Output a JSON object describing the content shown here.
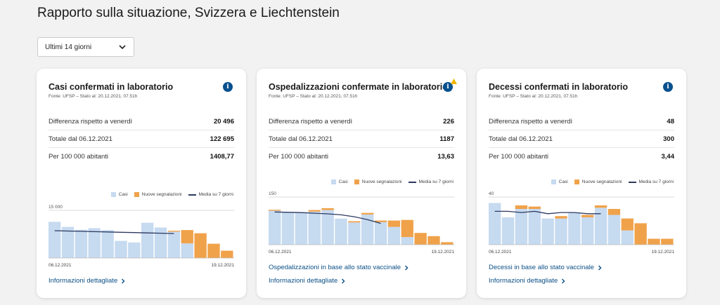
{
  "page": {
    "title": "Rapporto sulla situazione, Svizzera e Liechtenstein"
  },
  "period_select": {
    "value": "Ultimi 14 giorni"
  },
  "colors": {
    "bar": "#c6daf0",
    "new": "#f0a24a",
    "avg": "#2d3960",
    "accent": "#06508e"
  },
  "legend": {
    "cases": "Casi",
    "new": "Nuove segnalazioni",
    "avg": "Media su 7 giorni"
  },
  "cards": [
    {
      "title": "Casi confermati in laboratorio",
      "source": "Fonte: UFSP – Stato al: 20.12.2021, 07.51h",
      "stats": [
        {
          "label": "Differenza rispetto a venerdì",
          "value": "20 496"
        },
        {
          "label": "Totale dal 06.12.2021",
          "value": "122 695"
        },
        {
          "label": "Per 100 000 abitanti",
          "value": "1408,77"
        }
      ],
      "links": [
        "Informazioni dettagliate"
      ]
    },
    {
      "title": "Ospedalizzazioni confermate in laboratorio",
      "source": "Fonte: UFSP – Stato al: 20.12.2021, 07.51h",
      "stats": [
        {
          "label": "Differenza rispetto a venerdì",
          "value": "226"
        },
        {
          "label": "Totale dal 06.12.2021",
          "value": "1187"
        },
        {
          "label": "Per 100 000 abitanti",
          "value": "13,63"
        }
      ],
      "links": [
        "Ospedalizzazioni in base allo stato vaccinale",
        "Informazioni dettagliate"
      ]
    },
    {
      "title": "Decessi confermati in laboratorio",
      "source": "Fonte: UFSP – Stato al: 20.12.2021, 07.51h",
      "stats": [
        {
          "label": "Differenza rispetto a venerdì",
          "value": "48"
        },
        {
          "label": "Totale dal 06.12.2021",
          "value": "300"
        },
        {
          "label": "Per 100 000 abitanti",
          "value": "3,44"
        }
      ],
      "links": [
        "Decessi in base allo stato vaccinale",
        "Informazioni dettagliate"
      ]
    }
  ],
  "chart_data": [
    {
      "type": "bar",
      "x_start": "06.12.2021",
      "x_end": "19.12.2021",
      "ymax_label": "15 000",
      "ymax": 15000,
      "series": [
        {
          "name": "Casi",
          "values": [
            11400,
            9800,
            8900,
            9400,
            8800,
            5400,
            4900,
            11100,
            9600,
            8300,
            4600,
            0,
            0,
            0
          ]
        },
        {
          "name": "Nuove segnalazioni",
          "values": [
            0,
            0,
            0,
            0,
            0,
            0,
            0,
            0,
            0,
            300,
            4200,
            7800,
            4500,
            2300
          ]
        },
        {
          "name": "Media su 7 giorni",
          "values": [
            8600,
            8500,
            8400,
            8300,
            8200,
            8100,
            8000,
            7900,
            7800,
            7700,
            null,
            null,
            null,
            null
          ]
        }
      ]
    },
    {
      "type": "bar",
      "x_start": "06.12.2021",
      "x_end": "19.12.2021",
      "ymax_label": "150",
      "ymax": 150,
      "series": [
        {
          "name": "Casi",
          "values": [
            107,
            103,
            102,
            104,
            109,
            82,
            70,
            95,
            71,
            56,
            24,
            0,
            0,
            0
          ]
        },
        {
          "name": "Nuove segnalazioni",
          "values": [
            3,
            0,
            0,
            5,
            6,
            0,
            4,
            5,
            5,
            20,
            54,
            37,
            27,
            8
          ]
        },
        {
          "name": "Media su 7 giorni",
          "values": [
            103,
            102,
            101,
            99,
            97,
            94,
            88,
            79,
            67,
            null,
            null,
            null,
            null,
            null
          ]
        }
      ]
    },
    {
      "type": "bar",
      "x_start": "06.12.2021",
      "x_end": "19.12.2021",
      "ymax_label": "40",
      "ymax": 40,
      "series": [
        {
          "name": "Casi",
          "values": [
            35,
            23,
            30,
            30,
            22,
            22,
            27,
            23,
            31,
            25,
            12,
            0,
            0,
            0
          ]
        },
        {
          "name": "Nuove segnalazioni",
          "values": [
            0,
            0,
            3,
            2,
            0,
            2,
            0,
            2,
            2,
            5,
            10,
            18,
            5,
            5
          ]
        },
        {
          "name": "Media su 7 giorni",
          "values": [
            28,
            28,
            27,
            28,
            26,
            27,
            27,
            26,
            26,
            null,
            null,
            null,
            null,
            null
          ]
        }
      ]
    }
  ]
}
